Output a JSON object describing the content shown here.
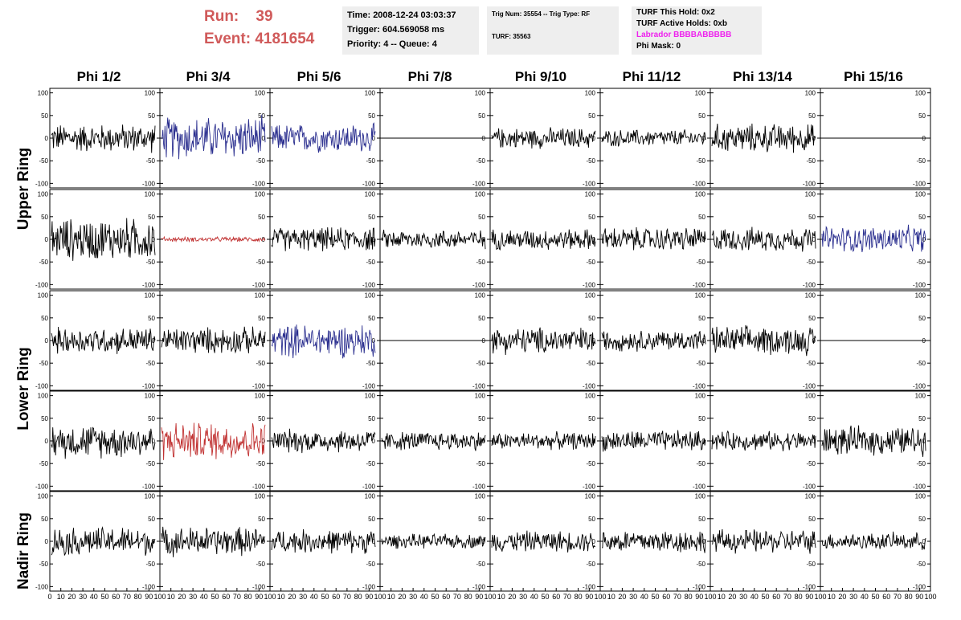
{
  "header": {
    "run_label": "Run:",
    "run_value": "39",
    "event_label": "Event:",
    "event_value": "4181654",
    "time": "Time: 2008-12-24 03:03:37",
    "trigger": "Trigger: 604.569058 ms",
    "priority": "Priority: 4 -- Queue: 4",
    "trig_num": "Trig Num: 35554 -- Trig Type: RF",
    "turf": "TURF: 35563",
    "turf_hold": "TURF This Hold: 0x2",
    "turf_active": "TURF Active Holds: 0xb",
    "labrador": "Labrador BBBBABBBBB",
    "phi_mask": "Phi Mask: 0"
  },
  "columns": [
    "Phi 1/2",
    "Phi 3/4",
    "Phi 5/6",
    "Phi 7/8",
    "Phi 9/10",
    "Phi 11/12",
    "Phi 13/14",
    "Phi 15/16"
  ],
  "rows": [
    "Upper Ring",
    "Lower Ring",
    "Nadir Ring"
  ],
  "colors": {
    "black": "#000000",
    "blue": "#2b2f8f",
    "red": "#c03030",
    "accent_title": "#d05a5a",
    "labrador": "#ee22ee"
  },
  "chart_data": {
    "type": "line",
    "title": "",
    "xlabel": "",
    "ylabel": "",
    "xlim": [
      0,
      100
    ],
    "ylim": [
      -110,
      110
    ],
    "x_ticks": [
      0,
      10,
      20,
      30,
      40,
      50,
      60,
      70,
      80,
      90,
      100
    ],
    "y_ticks": [
      100,
      50,
      0,
      -50,
      -100
    ],
    "grid": false,
    "panel_rows": 5,
    "panel_cols": 8,
    "panels": [
      [
        "black:30",
        "blue:45",
        "blue:30",
        "flat",
        "black:22",
        "black:18",
        "black:30",
        "flat"
      ],
      [
        "black:45",
        "red:5",
        "black:25",
        "black:20",
        "black:22",
        "black:25",
        "black:25",
        "blue:28"
      ],
      [
        "black:28",
        "black:28",
        "blue:35",
        "flat",
        "black:28",
        "black:22",
        "black:30",
        "flat"
      ],
      [
        "black:35",
        "red:40",
        "black:25",
        "black:20",
        "black:18",
        "black:22",
        "black:20",
        "black:30"
      ],
      [
        "black:30",
        "black:30",
        "black:25",
        "black:15",
        "black:22",
        "black:25",
        "black:25",
        "black:18"
      ]
    ]
  }
}
